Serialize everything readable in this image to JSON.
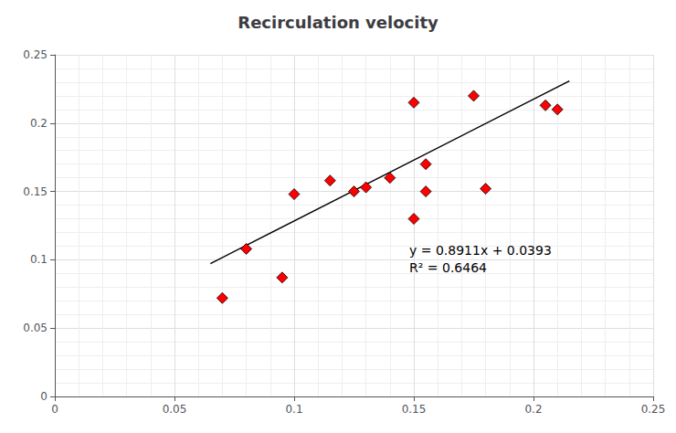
{
  "chart_data": {
    "type": "scatter",
    "title": "Recirculation velocity",
    "xlim": [
      0,
      0.25
    ],
    "ylim": [
      0,
      0.25
    ],
    "xticks": [
      0,
      0.05,
      0.1,
      0.15,
      0.2,
      0.25
    ],
    "yticks": [
      0,
      0.05,
      0.1,
      0.15,
      0.2,
      0.25
    ],
    "grid": true,
    "series": [
      {
        "type": "scatter",
        "color": "#FF0000",
        "marker": "diamond",
        "x": [
          0.07,
          0.08,
          0.095,
          0.1,
          0.115,
          0.125,
          0.13,
          0.14,
          0.15,
          0.15,
          0.155,
          0.155,
          0.175,
          0.18,
          0.205,
          0.21
        ],
        "values": [
          0.072,
          0.108,
          0.087,
          0.148,
          0.158,
          0.15,
          0.153,
          0.16,
          0.215,
          0.13,
          0.15,
          0.17,
          0.22,
          0.152,
          0.213,
          0.21
        ]
      },
      {
        "type": "line",
        "color": "#000000",
        "line_style": "solid",
        "x": [
          0.065,
          0.215
        ],
        "values": [
          0.0972215,
          0.2308865
        ]
      }
    ],
    "annotations": [
      "y = 0.8911x + 0.0393",
      "R² = 0.6464"
    ]
  }
}
